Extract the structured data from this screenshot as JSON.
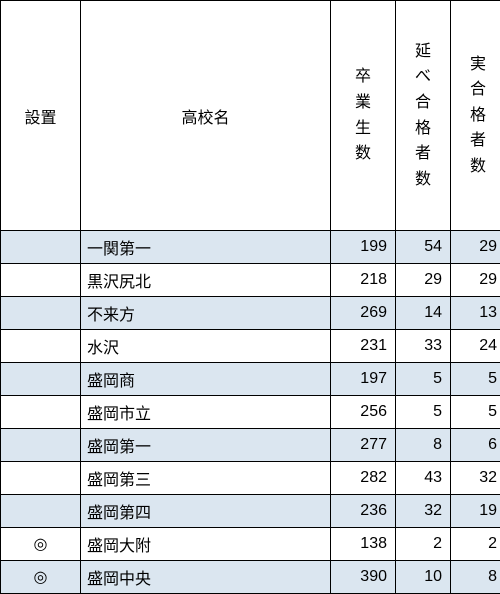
{
  "table": {
    "columns": {
      "installation": "設置",
      "school": "高校名",
      "graduates": "卒業生数",
      "total_pass": "延べ合格者数",
      "real_pass": "実合格者数"
    },
    "stripe_color": "#dbe6f0",
    "rows": [
      {
        "installation": "",
        "school": "一関第一",
        "graduates": 199,
        "total_pass": 54,
        "real_pass": 29,
        "stripe": true
      },
      {
        "installation": "",
        "school": "黒沢尻北",
        "graduates": 218,
        "total_pass": 29,
        "real_pass": 29,
        "stripe": false
      },
      {
        "installation": "",
        "school": "不来方",
        "graduates": 269,
        "total_pass": 14,
        "real_pass": 13,
        "stripe": true
      },
      {
        "installation": "",
        "school": "水沢",
        "graduates": 231,
        "total_pass": 33,
        "real_pass": 24,
        "stripe": false
      },
      {
        "installation": "",
        "school": "盛岡商",
        "graduates": 197,
        "total_pass": 5,
        "real_pass": 5,
        "stripe": true
      },
      {
        "installation": "",
        "school": "盛岡市立",
        "graduates": 256,
        "total_pass": 5,
        "real_pass": 5,
        "stripe": false
      },
      {
        "installation": "",
        "school": "盛岡第一",
        "graduates": 277,
        "total_pass": 8,
        "real_pass": 6,
        "stripe": true
      },
      {
        "installation": "",
        "school": "盛岡第三",
        "graduates": 282,
        "total_pass": 43,
        "real_pass": 32,
        "stripe": false
      },
      {
        "installation": "",
        "school": "盛岡第四",
        "graduates": 236,
        "total_pass": 32,
        "real_pass": 19,
        "stripe": true
      },
      {
        "installation": "◎",
        "school": "盛岡大附",
        "graduates": 138,
        "total_pass": 2,
        "real_pass": 2,
        "stripe": false
      },
      {
        "installation": "◎",
        "school": "盛岡中央",
        "graduates": 390,
        "total_pass": 10,
        "real_pass": 8,
        "stripe": true
      }
    ]
  }
}
